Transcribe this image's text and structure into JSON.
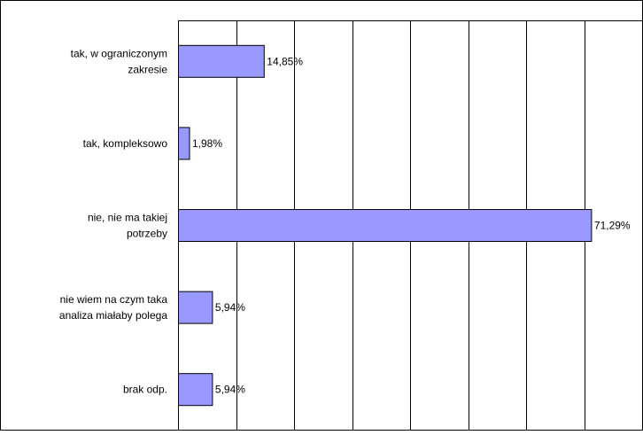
{
  "chart_data": {
    "type": "bar",
    "orientation": "horizontal",
    "categories": [
      [
        "tak, w ograniczonym",
        "zakresie"
      ],
      [
        "tak, kompleksowo"
      ],
      [
        "nie, nie ma takiej",
        "potrzeby"
      ],
      [
        "nie wiem na czym taka",
        "analiza miałaby polega"
      ],
      [
        "brak odp."
      ]
    ],
    "values": [
      14.85,
      1.98,
      71.29,
      5.94,
      5.94
    ],
    "value_labels": [
      "14,85%",
      "1,98%",
      "71,29%",
      "5,94%",
      "5,94%"
    ],
    "xlim": [
      0,
      80
    ],
    "x_gridlines": [
      10,
      20,
      30,
      40,
      50,
      60,
      70,
      80
    ],
    "grid": true,
    "legend": "none",
    "colors": {
      "bar_fill": "#9999ff",
      "bar_stroke": "#000000",
      "grid": "#000000",
      "frame": "#000000",
      "background": "#ffffff"
    }
  }
}
